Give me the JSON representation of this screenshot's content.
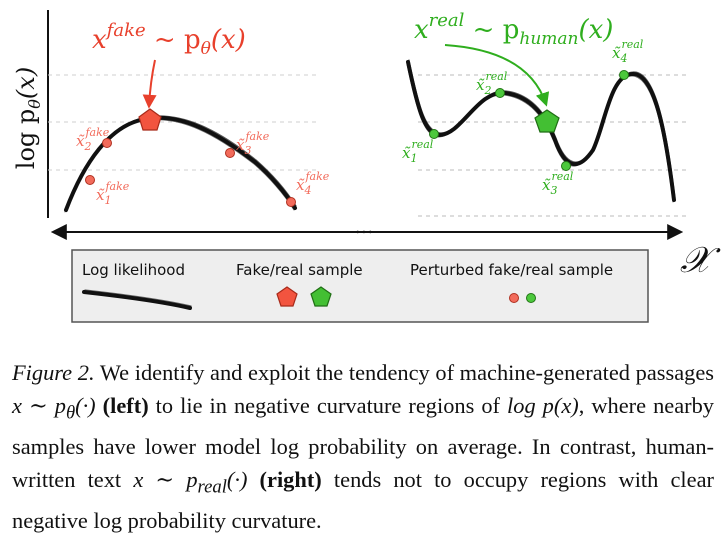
{
  "figure": {
    "y_axis_label": "log p",
    "y_axis_sub": "θ",
    "y_axis_arg": "(x)",
    "x_axis_symbol": "𝒳",
    "ellipsis": "...",
    "left_panel": {
      "label_main": "x",
      "label_sup": "fake",
      "label_rest": " ~ p",
      "label_sub": "θ",
      "label_arg": "(x)",
      "points": [
        {
          "base": "x̃",
          "sub": "1",
          "sup": "fake"
        },
        {
          "base": "x̃",
          "sub": "2",
          "sup": "fake"
        },
        {
          "base": "x̃",
          "sub": "3",
          "sup": "fake"
        },
        {
          "base": "x̃",
          "sub": "4",
          "sup": "fake"
        }
      ]
    },
    "right_panel": {
      "label_main": "x",
      "label_sup": "real",
      "label_rest": " ~ p",
      "label_sub": "human",
      "label_arg": "(x)",
      "points": [
        {
          "base": "x̃",
          "sub": "1",
          "sup": "real"
        },
        {
          "base": "x̃",
          "sub": "2",
          "sup": "real"
        },
        {
          "base": "x̃",
          "sub": "3",
          "sup": "real"
        },
        {
          "base": "x̃",
          "sub": "4",
          "sup": "real"
        }
      ]
    },
    "legend": {
      "log_likelihood": "Log likelihood",
      "sample": "Fake/real sample",
      "perturbed": "Perturbed fake/real sample"
    },
    "colors": {
      "fake": "#f26b5b",
      "fake_stroke": "#c0392b",
      "real": "#4cc83c",
      "real_stroke": "#2a8a1f",
      "legend_bg": "#eeeeee"
    }
  },
  "caption": {
    "label": "Figure 2.",
    "t1": " We identify and exploit the tendency of machine-generated passages ",
    "m1": "x ∼ p",
    "m1sub": "θ",
    "m1b": "(·)",
    "b1": " (left)",
    "t2": " to lie in negative curvature regions of ",
    "m2": "log p(x)",
    "t3": ", where nearby samples have lower model log probability on average.  In contrast, human-written text ",
    "m3": "x ∼ p",
    "m3sub": "real",
    "m3b": "(·)",
    "b2": " (right)",
    "t4": " tends not to occupy regions with clear negative log probability curvature."
  }
}
